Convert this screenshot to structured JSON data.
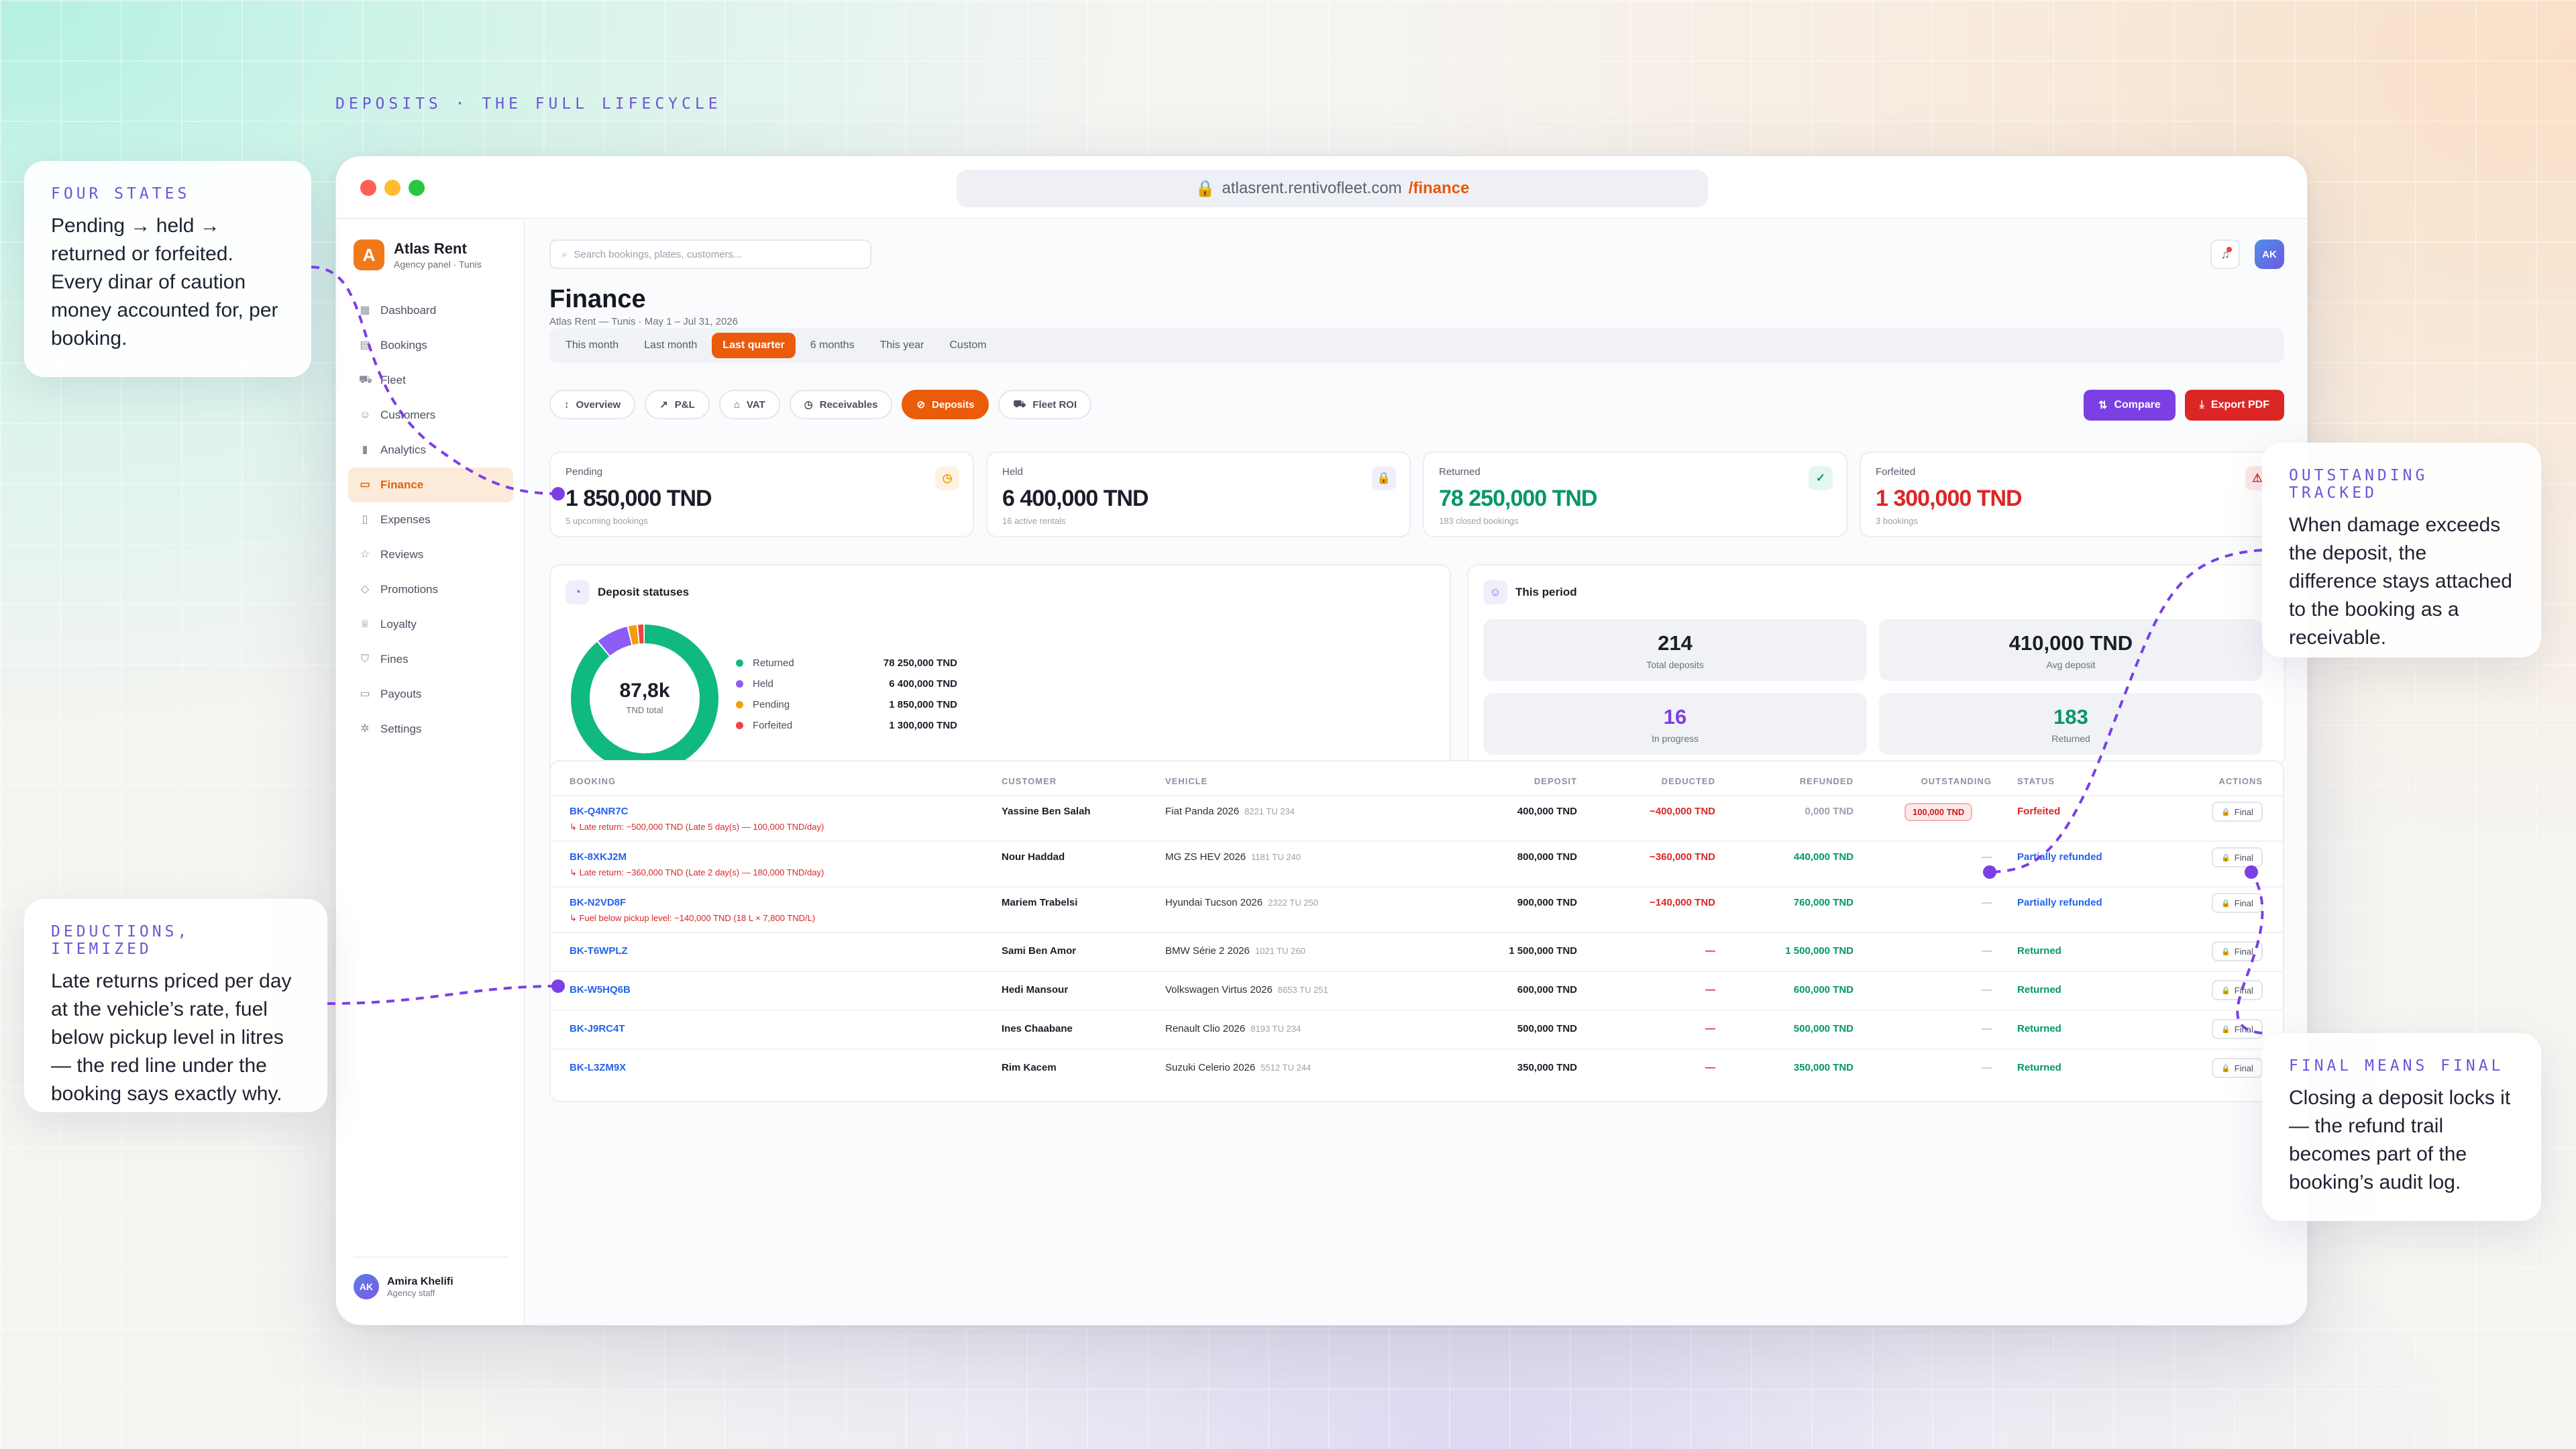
{
  "eyebrow": "DEPOSITS · THE FULL LIFECYCLE",
  "colors": {
    "accent": "#ea5b0c",
    "purple": "#7b3fe4",
    "red": "#dc2626",
    "green": "#059669",
    "blue": "#2563eb"
  },
  "browser": {
    "host": "atlasrent.rentivofleet.com",
    "path": "/finance"
  },
  "sidebar": {
    "brand": "Atlas Rent",
    "brand_sub": "Agency panel · Tunis",
    "brand_initial": "A",
    "items": [
      {
        "label": "Dashboard",
        "icon": "grid-icon"
      },
      {
        "label": "Bookings",
        "icon": "calendar-icon"
      },
      {
        "label": "Fleet",
        "icon": "car-icon"
      },
      {
        "label": "Customers",
        "icon": "users-icon"
      },
      {
        "label": "Analytics",
        "icon": "chart-icon"
      },
      {
        "label": "Finance",
        "icon": "wallet-icon",
        "active": true
      },
      {
        "label": "Expenses",
        "icon": "receipt-icon"
      },
      {
        "label": "Reviews",
        "icon": "star-icon"
      },
      {
        "label": "Promotions",
        "icon": "tag-icon"
      },
      {
        "label": "Loyalty",
        "icon": "crown-icon"
      },
      {
        "label": "Fines",
        "icon": "shield-icon"
      },
      {
        "label": "Payouts",
        "icon": "card-icon"
      },
      {
        "label": "Settings",
        "icon": "gear-icon"
      }
    ],
    "user": {
      "initials": "AK",
      "name": "Amira Khelifi",
      "role": "Agency staff"
    }
  },
  "topbar": {
    "search_placeholder": "Search bookings, plates, customers...",
    "avatar": "AK"
  },
  "page": {
    "title": "Finance",
    "subtitle": "Atlas Rent — Tunis · May 1 – Jul 31, 2026"
  },
  "periods": [
    "This month",
    "Last month",
    "Last quarter",
    "6 months",
    "This year",
    "Custom"
  ],
  "active_period": "Last quarter",
  "tabs": [
    {
      "label": "Overview",
      "icon": "↕"
    },
    {
      "label": "P&L",
      "icon": "↗"
    },
    {
      "label": "VAT",
      "icon": "⌂"
    },
    {
      "label": "Receivables",
      "icon": "◷"
    },
    {
      "label": "Deposits",
      "icon": "⊘",
      "active": true
    },
    {
      "label": "Fleet ROI",
      "icon": "⛟"
    }
  ],
  "actions": {
    "compare": "Compare",
    "export": "Export PDF"
  },
  "kpis": [
    {
      "label": "Pending",
      "value": "1 850,000 TND",
      "sub": "5 upcoming bookings",
      "color": "#1b1e29",
      "icon_color": "#f59e0b",
      "icon_bg": "#fef3e2",
      "icon": "◷"
    },
    {
      "label": "Held",
      "value": "6 400,000 TND",
      "sub": "16 active rentals",
      "color": "#1b1e29",
      "icon_color": "#7b5ce6",
      "icon_bg": "#f0eefc",
      "icon": "🔒"
    },
    {
      "label": "Returned",
      "value": "78 250,000 TND",
      "sub": "183 closed bookings",
      "color": "#059669",
      "icon_color": "#059669",
      "icon_bg": "#e3f7ee",
      "icon": "✓"
    },
    {
      "label": "Forfeited",
      "value": "1 300,000 TND",
      "sub": "3 bookings",
      "color": "#dc2626",
      "icon_color": "#dc2626",
      "icon_bg": "#fde8e8",
      "icon": "⚠"
    }
  ],
  "statuses_card": {
    "title": "Deposit statuses",
    "center_value": "87,8k",
    "center_label": "TND total"
  },
  "chart_data": {
    "type": "pie",
    "categories": [
      "Returned",
      "Held",
      "Pending",
      "Forfeited"
    ],
    "values": [
      78250,
      6400,
      1850,
      1300
    ],
    "labels": [
      "78 250,000 TND",
      "6 400,000 TND",
      "1 850,000 TND",
      "1 300,000 TND"
    ],
    "colors": [
      "#10b981",
      "#8b5cf6",
      "#f59e0b",
      "#ef4444"
    ]
  },
  "period_card": {
    "title": "This period",
    "stats": [
      {
        "value": "214",
        "label": "Total deposits",
        "color": "#1b1e29"
      },
      {
        "value": "410,000 TND",
        "label": "Avg deposit",
        "color": "#1b1e29"
      },
      {
        "value": "16",
        "label": "In progress",
        "color": "#7b3fe4"
      },
      {
        "value": "183",
        "label": "Returned",
        "color": "#059669"
      }
    ]
  },
  "table": {
    "headers": [
      "BOOKING",
      "CUSTOMER",
      "VEHICLE",
      "DEPOSIT",
      "DEDUCTED",
      "REFUNDED",
      "OUTSTANDING",
      "STATUS",
      "ACTIONS"
    ],
    "final_label": "Final",
    "rows": [
      {
        "booking": "BK-Q4NR7C",
        "note": "↳ Late return: −500,000 TND (Late 5 day(s) — 100,000 TND/day)",
        "customer": "Yassine Ben Salah",
        "vehicle": "Fiat Panda 2026",
        "plate": "8221 TU 234",
        "deposit": "400,000 TND",
        "deducted": "−400,000 TND",
        "refunded": "0,000 TND",
        "outstanding": "100,000 TND",
        "status": "Forfeited",
        "status_color": "#dc2626",
        "refund_color": "#9aa0ad",
        "deduct_color": "#dc2626"
      },
      {
        "booking": "BK-8XKJ2M",
        "note": "↳ Late return: −360,000 TND (Late 2 day(s) — 180,000 TND/day)",
        "customer": "Nour Haddad",
        "vehicle": "MG ZS HEV 2026",
        "plate": "1181 TU 240",
        "deposit": "800,000 TND",
        "deducted": "−360,000 TND",
        "refunded": "440,000 TND",
        "outstanding": "—",
        "status": "Partially refunded",
        "status_color": "#2563eb",
        "refund_color": "#059669",
        "deduct_color": "#dc2626"
      },
      {
        "booking": "BK-N2VD8F",
        "note": "↳ Fuel below pickup level: −140,000 TND (18 L × 7,800 TND/L)",
        "customer": "Mariem Trabelsi",
        "vehicle": "Hyundai Tucson 2026",
        "plate": "2322 TU 250",
        "deposit": "900,000 TND",
        "deducted": "−140,000 TND",
        "refunded": "760,000 TND",
        "outstanding": "—",
        "status": "Partially refunded",
        "status_color": "#2563eb",
        "refund_color": "#059669",
        "deduct_color": "#dc2626"
      },
      {
        "booking": "BK-T6WPLZ",
        "note": "",
        "customer": "Sami Ben Amor",
        "vehicle": "BMW Série 2 2026",
        "plate": "1021 TU 260",
        "deposit": "1 500,000 TND",
        "deducted": "—",
        "refunded": "1 500,000 TND",
        "outstanding": "—",
        "status": "Returned",
        "status_color": "#059669",
        "refund_color": "#059669",
        "deduct_color": "#dc2626"
      },
      {
        "booking": "BK-W5HQ6B",
        "note": "",
        "customer": "Hedi Mansour",
        "vehicle": "Volkswagen Virtus 2026",
        "plate": "8653 TU 251",
        "deposit": "600,000 TND",
        "deducted": "—",
        "refunded": "600,000 TND",
        "outstanding": "—",
        "status": "Returned",
        "status_color": "#059669",
        "refund_color": "#059669",
        "deduct_color": "#dc2626"
      },
      {
        "booking": "BK-J9RC4T",
        "note": "",
        "customer": "Ines Chaabane",
        "vehicle": "Renault Clio 2026",
        "plate": "8193 TU 234",
        "deposit": "500,000 TND",
        "deducted": "—",
        "refunded": "500,000 TND",
        "outstanding": "—",
        "status": "Returned",
        "status_color": "#059669",
        "refund_color": "#059669",
        "deduct_color": "#dc2626"
      },
      {
        "booking": "BK-L3ZM9X",
        "note": "",
        "customer": "Rim Kacem",
        "vehicle": "Suzuki Celerio 2026",
        "plate": "5512 TU 244",
        "deposit": "350,000 TND",
        "deducted": "—",
        "refunded": "350,000 TND",
        "outstanding": "—",
        "status": "Returned",
        "status_color": "#059669",
        "refund_color": "#059669",
        "deduct_color": "#dc2626"
      }
    ]
  },
  "callouts": {
    "four_states": {
      "title": "FOUR STATES",
      "body": "Pending → held → returned or forfeited. Every dinar of caution money accounted for, per booking."
    },
    "deductions": {
      "title": "DEDUCTIONS, ITEMIZED",
      "body": "Late returns priced per day at the vehicle’s rate, fuel below pickup level in litres — the red line under the booking says exactly why."
    },
    "outstanding": {
      "title": "OUTSTANDING TRACKED",
      "body": "When damage exceeds the deposit, the difference stays attached to the booking as a receivable."
    },
    "final": {
      "title": "FINAL MEANS FINAL",
      "body": "Closing a deposit locks it — the refund trail becomes part of the booking’s audit log."
    }
  }
}
